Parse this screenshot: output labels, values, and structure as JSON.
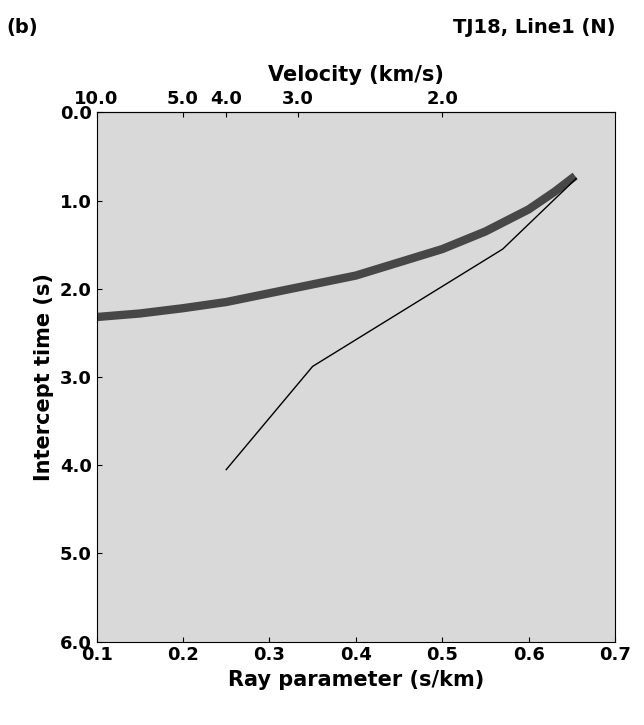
{
  "chart_data": {
    "type": "line",
    "title": "TJ18, Line1 (N)",
    "panel_label": "(b)",
    "x_label": "Ray parameter (s/km)",
    "y_label": "Intercept time (s)",
    "x2_label": "Velocity (km/s)",
    "xlim": [
      0.1,
      0.7
    ],
    "xticks": [
      0.1,
      0.2,
      0.3,
      0.4,
      0.5,
      0.6,
      0.7
    ],
    "ylim": [
      6.0,
      0.0
    ],
    "yticks": [
      0.0,
      1.0,
      2.0,
      3.0,
      4.0,
      5.0,
      6.0
    ],
    "x2ticks": [
      10.0,
      5.0,
      4.0,
      3.0,
      2.0
    ],
    "series": [
      {
        "type": "line",
        "color": "#222222",
        "line_style": "solid",
        "x": [
          0.1,
          0.15,
          0.2,
          0.25,
          0.3,
          0.35,
          0.4,
          0.45,
          0.5,
          0.55,
          0.6,
          0.63,
          0.65
        ],
        "values": [
          2.32,
          2.28,
          2.22,
          2.15,
          2.05,
          1.95,
          1.85,
          1.7,
          1.55,
          1.35,
          1.1,
          0.9,
          0.75
        ]
      },
      {
        "type": "line",
        "color": "#000000",
        "line_style": "solid",
        "x": [
          0.655,
          0.57,
          0.35,
          0.25
        ],
        "values": [
          0.75,
          1.55,
          2.88,
          4.05
        ]
      }
    ]
  }
}
